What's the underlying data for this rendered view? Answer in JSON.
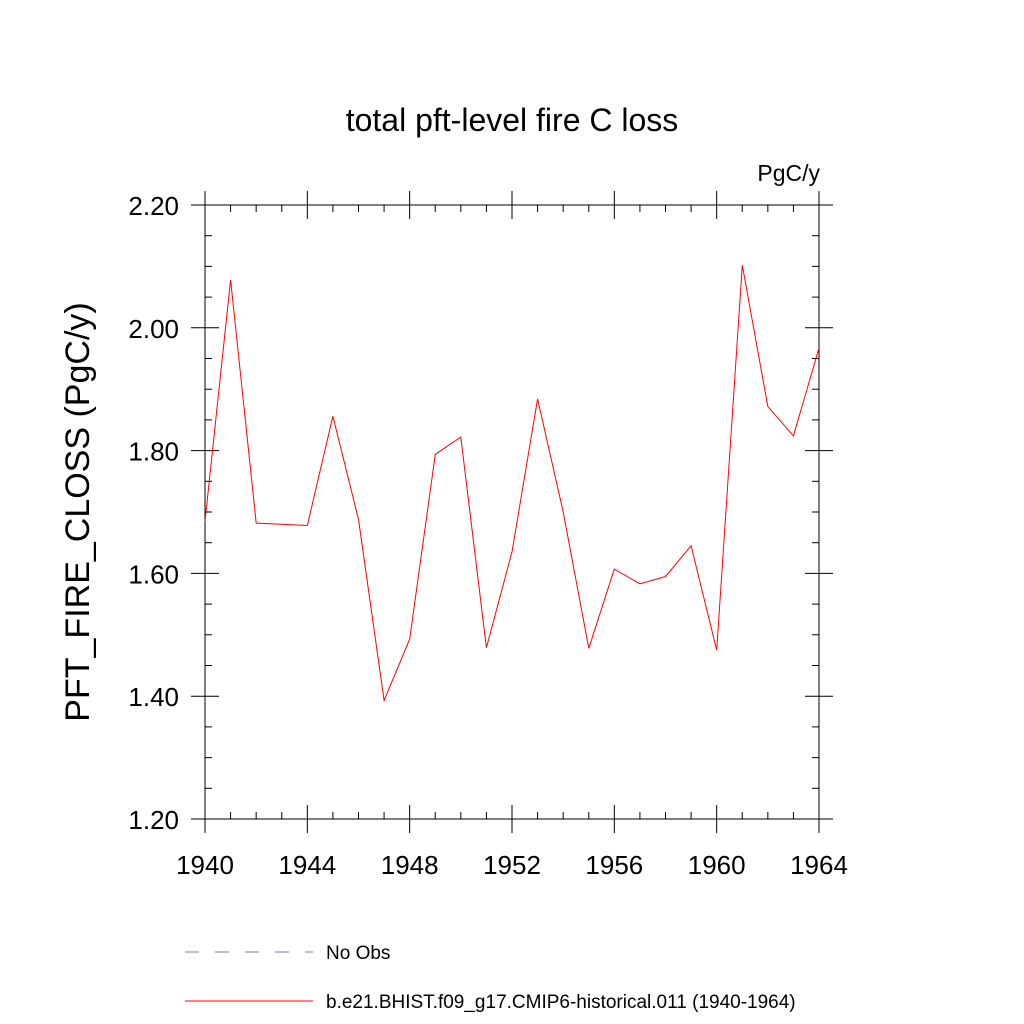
{
  "chart_data": {
    "type": "line",
    "title": "total pft-level fire C loss",
    "units": "PgC/y",
    "ylabel": "PFT_FIRE_CLOSS  (PgC/y)",
    "xlabel": "",
    "xlim": [
      1940,
      1964
    ],
    "ylim": [
      1.2,
      2.2
    ],
    "x_ticks": [
      1940,
      1944,
      1948,
      1952,
      1956,
      1960,
      1964
    ],
    "x_tick_labels": [
      "1940",
      "1944",
      "1948",
      "1952",
      "1956",
      "1960",
      "1964"
    ],
    "y_ticks": [
      1.2,
      1.4,
      1.6,
      1.8,
      2.0,
      2.2
    ],
    "y_tick_labels": [
      "1.20",
      "1.40",
      "1.60",
      "1.80",
      "2.00",
      "2.20"
    ],
    "grid": false,
    "legend_position": "bottom",
    "series": [
      {
        "name": "No Obs",
        "color": "#7b6fc4",
        "style": "dashed",
        "x": [],
        "values": []
      },
      {
        "name": "b.e21.BHIST.f09_g17.CMIP6-historical.011 (1940-1964)",
        "color": "#ff0000",
        "style": "solid",
        "x": [
          1940,
          1941,
          1942,
          1943,
          1944,
          1945,
          1946,
          1947,
          1948,
          1949,
          1950,
          1951,
          1952,
          1953,
          1954,
          1955,
          1956,
          1957,
          1958,
          1959,
          1960,
          1961,
          1962,
          1963,
          1964
        ],
        "values": [
          1.685,
          2.078,
          1.682,
          1.68,
          1.678,
          1.856,
          1.688,
          1.393,
          1.493,
          1.794,
          1.822,
          1.479,
          1.635,
          1.884,
          1.7,
          1.478,
          1.607,
          1.583,
          1.595,
          1.645,
          1.475,
          2.102,
          1.872,
          1.824,
          1.967
        ]
      }
    ]
  }
}
